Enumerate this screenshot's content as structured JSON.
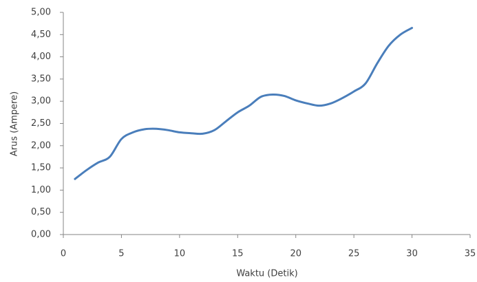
{
  "chart_data": {
    "type": "line",
    "xlabel": "Waktu (Detik)",
    "ylabel": "Arus (Ampere)",
    "x": [
      1,
      2,
      3,
      4,
      5,
      6,
      7,
      8,
      9,
      10,
      11,
      12,
      13,
      14,
      15,
      16,
      17,
      18,
      19,
      20,
      21,
      22,
      23,
      24,
      25,
      26,
      27,
      28,
      29,
      30
    ],
    "series": [
      {
        "name": "Arus",
        "color": "#4a7ebb",
        "values": [
          1.25,
          1.45,
          1.62,
          1.75,
          2.15,
          2.3,
          2.37,
          2.38,
          2.35,
          2.3,
          2.28,
          2.27,
          2.35,
          2.55,
          2.75,
          2.9,
          3.1,
          3.15,
          3.12,
          3.02,
          2.95,
          2.9,
          2.95,
          3.07,
          3.22,
          3.4,
          3.85,
          4.25,
          4.5,
          4.65
        ]
      }
    ],
    "xlim": [
      0,
      35
    ],
    "xticks": [
      0,
      5,
      10,
      15,
      20,
      25,
      30,
      35
    ],
    "ylim": [
      0,
      5
    ],
    "yticks": [
      {
        "value": 0,
        "label": "0,00"
      },
      {
        "value": 0.5,
        "label": "0,50"
      },
      {
        "value": 1,
        "label": "1,00"
      },
      {
        "value": 1.5,
        "label": "1,50"
      },
      {
        "value": 2,
        "label": "2,00"
      },
      {
        "value": 2.5,
        "label": "2,50"
      },
      {
        "value": 3,
        "label": "3,00"
      },
      {
        "value": 3.5,
        "label": "3,50"
      },
      {
        "value": 4,
        "label": "4,00"
      },
      {
        "value": 4.5,
        "label": "4,50"
      },
      {
        "value": 5,
        "label": "5,00"
      }
    ],
    "grid": false,
    "legend": false
  }
}
